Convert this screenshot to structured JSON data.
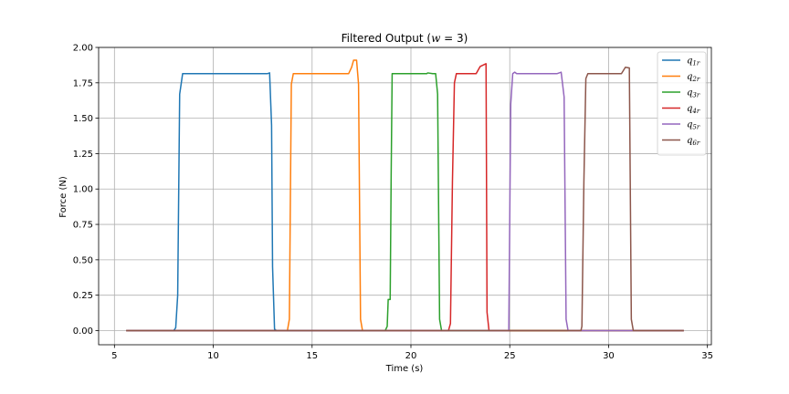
{
  "chart_data": {
    "type": "line",
    "title": "Filtered Output (w = 3)",
    "title_parts": {
      "prefix": "Filtered Output (",
      "var": "w",
      "suffix": " = 3)"
    },
    "xlabel": "Time (s)",
    "ylabel": "Force (N)",
    "xlim": [
      4.2,
      35.2
    ],
    "ylim": [
      -0.1,
      2.0
    ],
    "xticks": [
      5,
      10,
      15,
      20,
      25,
      30,
      35
    ],
    "xtick_labels": [
      "5",
      "10",
      "15",
      "20",
      "25",
      "30",
      "35"
    ],
    "yticks": [
      0.0,
      0.25,
      0.5,
      0.75,
      1.0,
      1.25,
      1.5,
      1.75,
      2.0
    ],
    "ytick_labels": [
      "0.00",
      "0.25",
      "0.50",
      "0.75",
      "1.00",
      "1.25",
      "1.50",
      "1.75",
      "2.00"
    ],
    "grid": true,
    "legend_position": "top-right",
    "series": [
      {
        "name": "q1r",
        "label_main": "q",
        "label_sub": "1r",
        "color": "#1f77b4",
        "points": [
          [
            5.6,
            0
          ],
          [
            8.0,
            0
          ],
          [
            8.1,
            0.02
          ],
          [
            8.2,
            0.25
          ],
          [
            8.3,
            1.67
          ],
          [
            8.45,
            1.815
          ],
          [
            12.75,
            1.815
          ],
          [
            12.85,
            1.82
          ],
          [
            12.95,
            1.45
          ],
          [
            13.0,
            0.45
          ],
          [
            13.1,
            0.01
          ],
          [
            13.2,
            0
          ],
          [
            33.8,
            0
          ]
        ]
      },
      {
        "name": "q2r",
        "label_main": "q",
        "label_sub": "2r",
        "color": "#ff7f0e",
        "points": [
          [
            5.6,
            0
          ],
          [
            13.75,
            0
          ],
          [
            13.85,
            0.08
          ],
          [
            13.95,
            1.74
          ],
          [
            14.05,
            1.815
          ],
          [
            16.85,
            1.815
          ],
          [
            17.0,
            1.86
          ],
          [
            17.1,
            1.91
          ],
          [
            17.25,
            1.91
          ],
          [
            17.35,
            1.74
          ],
          [
            17.45,
            0.08
          ],
          [
            17.55,
            0
          ],
          [
            33.8,
            0
          ]
        ]
      },
      {
        "name": "q3r",
        "label_main": "q",
        "label_sub": "3r",
        "color": "#2ca02c",
        "points": [
          [
            5.6,
            0
          ],
          [
            18.7,
            0
          ],
          [
            18.8,
            0.03
          ],
          [
            18.85,
            0.22
          ],
          [
            18.95,
            0.22
          ],
          [
            19.0,
            1.1
          ],
          [
            19.05,
            1.815
          ],
          [
            20.8,
            1.815
          ],
          [
            20.85,
            1.82
          ],
          [
            21.1,
            1.815
          ],
          [
            21.25,
            1.815
          ],
          [
            21.35,
            1.67
          ],
          [
            21.45,
            0.08
          ],
          [
            21.55,
            0
          ],
          [
            33.8,
            0
          ]
        ]
      },
      {
        "name": "q4r",
        "label_main": "q",
        "label_sub": "4r",
        "color": "#d62728",
        "points": [
          [
            5.6,
            0
          ],
          [
            21.9,
            0
          ],
          [
            22.0,
            0.05
          ],
          [
            22.1,
            1.05
          ],
          [
            22.2,
            1.75
          ],
          [
            22.3,
            1.815
          ],
          [
            23.3,
            1.815
          ],
          [
            23.5,
            1.865
          ],
          [
            23.8,
            1.885
          ],
          [
            23.85,
            0.13
          ],
          [
            23.95,
            0
          ],
          [
            33.8,
            0
          ]
        ]
      },
      {
        "name": "q5r",
        "label_main": "q",
        "label_sub": "5r",
        "color": "#9467bd",
        "points": [
          [
            5.6,
            0
          ],
          [
            24.95,
            0
          ],
          [
            25.05,
            1.6
          ],
          [
            25.15,
            1.815
          ],
          [
            25.25,
            1.825
          ],
          [
            25.35,
            1.815
          ],
          [
            27.4,
            1.815
          ],
          [
            27.6,
            1.825
          ],
          [
            27.75,
            1.65
          ],
          [
            27.85,
            0.08
          ],
          [
            27.95,
            0
          ],
          [
            33.8,
            0
          ]
        ]
      },
      {
        "name": "q6r",
        "label_main": "q",
        "label_sub": "6r",
        "color": "#8c564b",
        "points": [
          [
            5.6,
            0
          ],
          [
            28.6,
            0
          ],
          [
            28.65,
            0.03
          ],
          [
            28.75,
            1.05
          ],
          [
            28.85,
            1.78
          ],
          [
            28.95,
            1.815
          ],
          [
            30.65,
            1.815
          ],
          [
            30.85,
            1.86
          ],
          [
            31.05,
            1.855
          ],
          [
            31.15,
            0.08
          ],
          [
            31.25,
            0
          ],
          [
            33.8,
            0
          ]
        ]
      }
    ]
  }
}
